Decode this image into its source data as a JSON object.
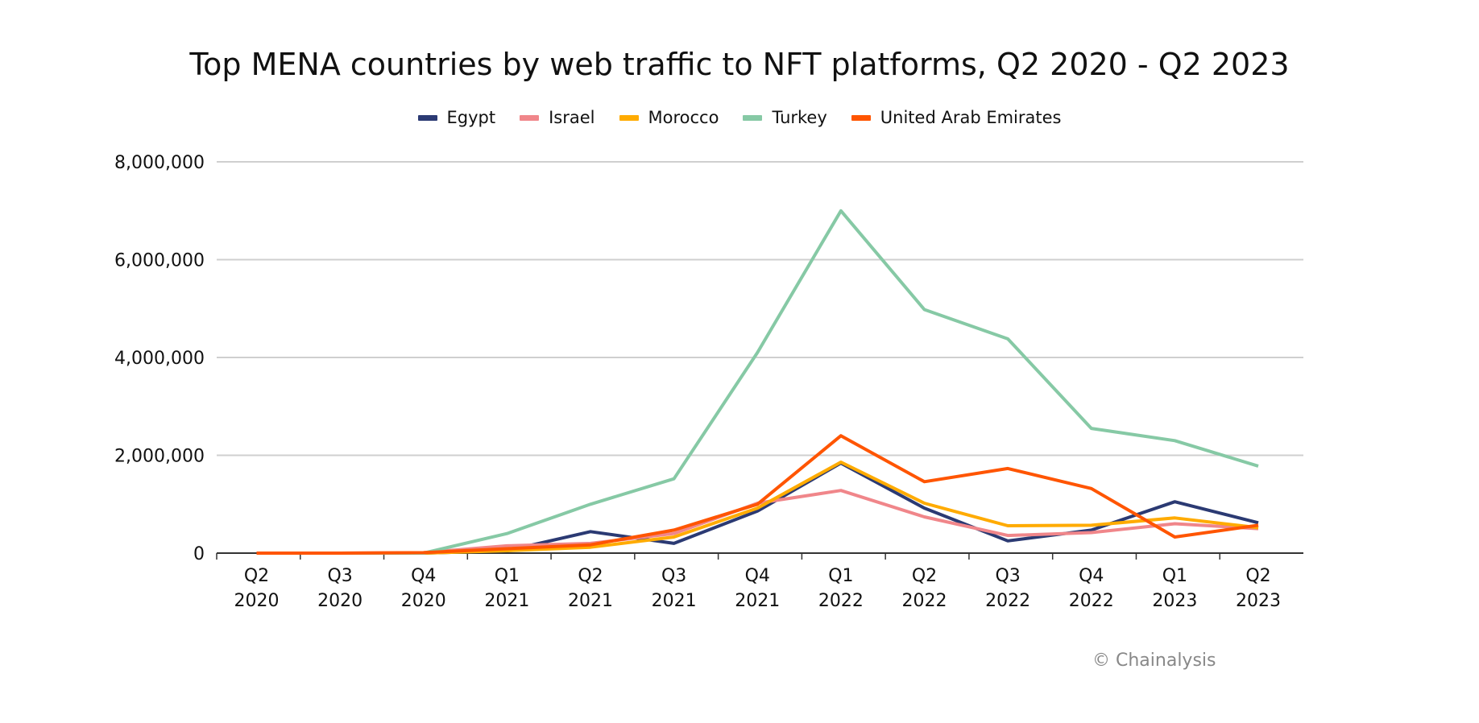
{
  "chart_data": {
    "type": "line",
    "title": "Top MENA countries by web traffic to NFT platforms, Q2 2020 - Q2 2023",
    "xlabel": "",
    "ylabel": "",
    "categories": [
      [
        "Q2",
        "2020"
      ],
      [
        "Q3",
        "2020"
      ],
      [
        "Q4",
        "2020"
      ],
      [
        "Q1",
        "2021"
      ],
      [
        "Q2",
        "2021"
      ],
      [
        "Q3",
        "2021"
      ],
      [
        "Q4",
        "2021"
      ],
      [
        "Q1",
        "2022"
      ],
      [
        "Q2",
        "2022"
      ],
      [
        "Q3",
        "2022"
      ],
      [
        "Q4",
        "2022"
      ],
      [
        "Q1",
        "2023"
      ],
      [
        "Q2",
        "2023"
      ]
    ],
    "ylim": [
      0,
      8000000
    ],
    "yticks": [
      0,
      2000000,
      4000000,
      6000000,
      8000000
    ],
    "ytick_labels": [
      "0",
      "2,000,000",
      "4,000,000",
      "6,000,000",
      "8,000,000"
    ],
    "grid": "horizontal",
    "legend_position": "top",
    "series": [
      {
        "name": "Egypt",
        "color": "#2B3A73",
        "values": [
          0,
          0,
          0,
          50000,
          440000,
          200000,
          860000,
          1840000,
          920000,
          250000,
          470000,
          1050000,
          620000
        ]
      },
      {
        "name": "Israel",
        "color": "#F0868A",
        "values": [
          0,
          0,
          10000,
          150000,
          200000,
          400000,
          1020000,
          1280000,
          740000,
          360000,
          420000,
          600000,
          500000
        ]
      },
      {
        "name": "Morocco",
        "color": "#FFAB00",
        "values": [
          0,
          0,
          0,
          50000,
          120000,
          330000,
          920000,
          1860000,
          1020000,
          560000,
          570000,
          720000,
          520000
        ]
      },
      {
        "name": "Turkey",
        "color": "#86C9A5",
        "values": [
          0,
          0,
          0,
          400000,
          1000000,
          1520000,
          4100000,
          7000000,
          4980000,
          4380000,
          2550000,
          2300000,
          1780000
        ]
      },
      {
        "name": "United Arab Emirates",
        "color": "#FF5500",
        "values": [
          0,
          0,
          10000,
          90000,
          170000,
          470000,
          1000000,
          2400000,
          1460000,
          1730000,
          1320000,
          330000,
          570000
        ]
      }
    ]
  },
  "credit": "© Chainalysis"
}
